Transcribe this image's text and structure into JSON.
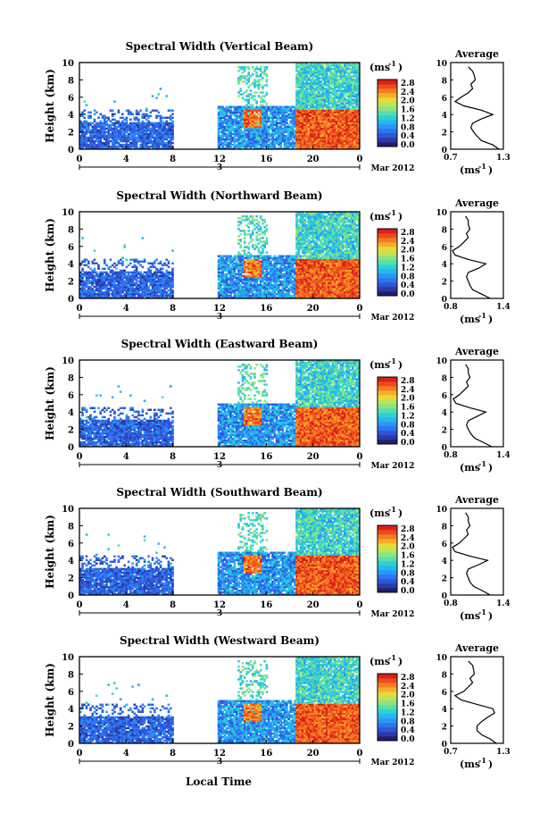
{
  "colors": {
    "colorbar": [
      "#20206a",
      "#2b3aa8",
      "#2f55d6",
      "#2f74f0",
      "#2a97f5",
      "#25b7ee",
      "#2dd0d4",
      "#55dfae",
      "#8be47e",
      "#bde458",
      "#e9d83a",
      "#f7ad2c",
      "#f47d22",
      "#ee4a1c",
      "#d8201c"
    ],
    "axis": "#000000",
    "background": "#ffffff"
  },
  "chart_data": [
    {
      "type": "heatmap",
      "title": "Spectral Width (Vertical Beam)",
      "ylabel": "Height (km)",
      "ylim": [
        0,
        10
      ],
      "yticks": [
        "0",
        "2",
        "4",
        "6",
        "8",
        "10"
      ],
      "xticks": [
        "0",
        "4",
        "8",
        "12",
        "16",
        "20",
        "0"
      ],
      "date_label": "3",
      "month_label": "Mar 2012",
      "colorbar_unit": "(ms",
      "colorbar_unit_exp": "-1",
      "colorbar_unit_close": ")",
      "colorbar_ticks": [
        "0.0",
        "0.4",
        "0.8",
        "1.2",
        "1.6",
        "2.0",
        "2.4",
        "2.8"
      ],
      "profile": {
        "title": "Average",
        "xlim": [
          0.7,
          1.3
        ],
        "xticks": [
          "0.7",
          "1.3"
        ],
        "yticks": [
          "0",
          "2",
          "4",
          "6",
          "8",
          "10"
        ],
        "unit": "(ms",
        "unit_exp": "-1",
        "unit_close": ")",
        "heights_km": [
          0,
          0.5,
          1,
          1.5,
          2,
          2.5,
          3,
          3.5,
          4,
          4.5,
          5,
          5.5,
          6,
          6.5,
          7,
          7.5,
          8,
          8.5,
          9,
          9.5
        ],
        "values": [
          1.25,
          1.18,
          1.05,
          1.0,
          0.96,
          0.93,
          0.95,
          1.05,
          1.18,
          1.05,
          0.85,
          0.75,
          0.82,
          0.9,
          0.95,
          0.93,
          0.98,
          0.97,
          0.95,
          0.9
        ]
      }
    },
    {
      "type": "heatmap",
      "title": "Spectral Width (Northward Beam)",
      "ylabel": "Height (km)",
      "ylim": [
        0,
        10
      ],
      "yticks": [
        "0",
        "2",
        "4",
        "6",
        "8",
        "10"
      ],
      "xticks": [
        "0",
        "4",
        "8",
        "12",
        "16",
        "20",
        "0"
      ],
      "date_label": "3",
      "month_label": "Mar 2012",
      "colorbar_unit": "(ms",
      "colorbar_unit_exp": "-1",
      "colorbar_unit_close": ")",
      "colorbar_ticks": [
        "0.0",
        "0.4",
        "0.8",
        "1.2",
        "1.6",
        "2.0",
        "2.4",
        "2.8"
      ],
      "profile": {
        "title": "Average",
        "xlim": [
          0.8,
          1.4
        ],
        "xticks": [
          "0.8",
          "1.4"
        ],
        "yticks": [
          "0",
          "2",
          "4",
          "6",
          "8",
          "10"
        ],
        "unit": "(ms",
        "unit_exp": "-1",
        "unit_close": ")",
        "heights_km": [
          0,
          0.5,
          1,
          1.5,
          2,
          2.5,
          3,
          3.5,
          4,
          4.5,
          5,
          5.5,
          6,
          6.5,
          7,
          7.5,
          8,
          8.5,
          9,
          9.5
        ],
        "values": [
          1.25,
          1.15,
          1.05,
          1.02,
          1.0,
          0.98,
          1.0,
          1.12,
          1.2,
          1.0,
          0.85,
          0.82,
          0.9,
          0.95,
          1.0,
          0.98,
          1.02,
          1.0,
          1.0,
          0.97
        ]
      }
    },
    {
      "type": "heatmap",
      "title": "Spectral Width (Eastward Beam)",
      "ylabel": "Height (km)",
      "ylim": [
        0,
        10
      ],
      "yticks": [
        "0",
        "2",
        "4",
        "6",
        "8",
        "10"
      ],
      "xticks": [
        "0",
        "4",
        "8",
        "12",
        "16",
        "20",
        "0"
      ],
      "date_label": "3",
      "month_label": "Mar 2012",
      "colorbar_unit": "(ms",
      "colorbar_unit_exp": "-1",
      "colorbar_unit_close": ")",
      "colorbar_ticks": [
        "0.0",
        "0.4",
        "0.8",
        "1.2",
        "1.6",
        "2.0",
        "2.4",
        "2.8"
      ],
      "profile": {
        "title": "Average",
        "xlim": [
          0.8,
          1.4
        ],
        "xticks": [
          "0.8",
          "1.4"
        ],
        "yticks": [
          "0",
          "2",
          "4",
          "6",
          "8",
          "10"
        ],
        "unit": "(ms",
        "unit_exp": "-1",
        "unit_close": ")",
        "heights_km": [
          0,
          0.5,
          1,
          1.5,
          2,
          2.5,
          3,
          3.5,
          4,
          4.5,
          5,
          5.5,
          6,
          6.5,
          7,
          7.5,
          8,
          8.5,
          9,
          9.5
        ],
        "values": [
          1.27,
          1.17,
          1.07,
          1.03,
          1.0,
          0.98,
          1.0,
          1.1,
          1.2,
          1.02,
          0.86,
          0.83,
          0.9,
          0.95,
          1.0,
          0.98,
          1.02,
          1.0,
          1.0,
          0.97
        ]
      }
    },
    {
      "type": "heatmap",
      "title": "Spectral Width (Southward Beam)",
      "ylabel": "Height (km)",
      "ylim": [
        0,
        10
      ],
      "yticks": [
        "0",
        "2",
        "4",
        "6",
        "8",
        "10"
      ],
      "xticks": [
        "0",
        "4",
        "8",
        "12",
        "16",
        "20",
        "0"
      ],
      "date_label": "3",
      "month_label": "Mar 2012",
      "colorbar_unit": "(ms",
      "colorbar_unit_exp": "-1",
      "colorbar_unit_close": ")",
      "colorbar_ticks": [
        "0.0",
        "0.4",
        "0.8",
        "1.2",
        "1.6",
        "2.0",
        "2.4",
        "2.8"
      ],
      "profile": {
        "title": "Average",
        "xlim": [
          0.8,
          1.4
        ],
        "xticks": [
          "0.8",
          "1.4"
        ],
        "yticks": [
          "0",
          "2",
          "4",
          "6",
          "8",
          "10"
        ],
        "unit": "(ms",
        "unit_exp": "-1",
        "unit_close": ")",
        "heights_km": [
          0,
          0.5,
          1,
          1.5,
          2,
          2.5,
          3,
          3.5,
          4,
          4.5,
          5,
          5.5,
          6,
          6.5,
          7,
          7.5,
          8,
          8.5,
          9,
          9.5
        ],
        "values": [
          1.25,
          1.16,
          1.06,
          1.02,
          1.0,
          0.98,
          1.0,
          1.12,
          1.22,
          1.02,
          0.85,
          0.82,
          0.9,
          0.95,
          1.0,
          0.98,
          1.02,
          1.0,
          1.0,
          0.97
        ]
      }
    },
    {
      "type": "heatmap",
      "title": "Spectral Width (Westward Beam)",
      "ylabel": "Height (km)",
      "ylim": [
        0,
        10
      ],
      "yticks": [
        "0",
        "2",
        "4",
        "6",
        "8",
        "10"
      ],
      "xticks": [
        "0",
        "4",
        "8",
        "12",
        "16",
        "20",
        "0"
      ],
      "date_label": "3",
      "month_label": "Mar 2012",
      "colorbar_unit": "(ms",
      "colorbar_unit_exp": "-1",
      "colorbar_unit_close": ")",
      "colorbar_ticks": [
        "0.0",
        "0.4",
        "0.8",
        "1.2",
        "1.6",
        "2.0",
        "2.4",
        "2.8"
      ],
      "profile": {
        "title": "Average",
        "xlim": [
          0.7,
          1.3
        ],
        "xticks": [
          "0.7",
          "1.3"
        ],
        "yticks": [
          "0",
          "2",
          "4",
          "6",
          "8",
          "10"
        ],
        "unit": "(ms",
        "unit_exp": "-1",
        "unit_close": ")",
        "heights_km": [
          0,
          0.5,
          1,
          1.5,
          2,
          2.5,
          3,
          3.5,
          4,
          4.5,
          5,
          5.5,
          6,
          6.5,
          7,
          7.5,
          8,
          8.5,
          9,
          9.5
        ],
        "values": [
          1.22,
          1.15,
          1.05,
          1.0,
          1.0,
          1.05,
          1.12,
          1.2,
          1.18,
          1.0,
          0.82,
          0.75,
          0.85,
          0.9,
          0.95,
          0.92,
          0.97,
          0.96,
          0.95,
          0.9
        ]
      }
    }
  ],
  "footer": {
    "xlabel": "Local Time"
  }
}
